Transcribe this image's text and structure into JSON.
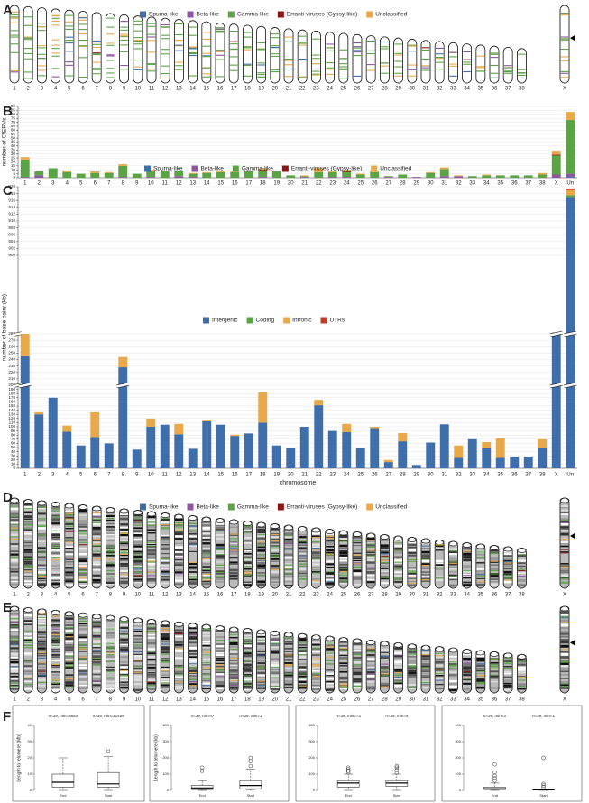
{
  "chart_data": [
    {
      "type": "ideogram",
      "panel": "A",
      "series": [
        {
          "name": "Spuma-like",
          "color": "#3f6faa"
        },
        {
          "name": "Beta-like",
          "color": "#8e55a0"
        },
        {
          "name": "Gamma-like",
          "color": "#5aa445"
        },
        {
          "name": "Erranti-viruses (Gypsy-like)",
          "color": "#8b1414"
        },
        {
          "name": "Unclassified",
          "color": "#e9a94a"
        }
      ],
      "categories": [
        "1",
        "2",
        "3",
        "4",
        "5",
        "6",
        "7",
        "8",
        "9",
        "10",
        "11",
        "12",
        "13",
        "14",
        "15",
        "16",
        "17",
        "18",
        "19",
        "20",
        "21",
        "22",
        "23",
        "24",
        "25",
        "26",
        "27",
        "28",
        "29",
        "30",
        "31",
        "32",
        "33",
        "34",
        "35",
        "36",
        "37",
        "38",
        "X"
      ],
      "banded": false
    },
    {
      "type": "bar",
      "panel": "B",
      "stacked": true,
      "ylabel": "number of CfERVs",
      "grid": true,
      "categories": [
        "1",
        "2",
        "3",
        "4",
        "5",
        "6",
        "7",
        "8",
        "9",
        "10",
        "11",
        "12",
        "13",
        "14",
        "15",
        "16",
        "17",
        "18",
        "19",
        "20",
        "21",
        "22",
        "23",
        "24",
        "25",
        "26",
        "27",
        "28",
        "29",
        "30",
        "31",
        "32",
        "33",
        "34",
        "35",
        "36",
        "37",
        "38",
        "X",
        "Un"
      ],
      "series": [
        {
          "name": "Spuma-like",
          "color": "#3f6faa",
          "values": [
            0,
            0,
            0,
            0,
            0,
            0,
            0,
            0,
            0,
            0,
            0,
            0,
            0,
            0,
            0,
            0,
            0,
            0,
            0,
            0,
            0,
            0,
            0,
            0,
            0,
            0,
            0,
            0,
            0,
            0,
            0,
            0,
            0,
            0,
            0,
            0,
            0,
            0,
            0,
            1
          ]
        },
        {
          "name": "Beta-like",
          "color": "#8e55a0",
          "values": [
            1,
            3,
            0,
            0,
            0,
            0,
            0,
            1,
            0,
            1,
            0,
            2,
            1,
            0,
            0,
            0,
            0,
            1,
            0,
            0,
            1,
            0,
            1,
            1,
            0,
            0,
            1,
            0,
            1,
            0,
            2,
            2,
            0,
            0,
            0,
            0,
            0,
            0,
            4,
            4
          ]
        },
        {
          "name": "Gamma-like",
          "color": "#5aa445",
          "values": [
            22,
            5,
            12,
            7,
            5,
            6,
            6,
            14,
            5,
            7,
            8,
            6,
            4,
            6,
            7,
            7,
            8,
            8,
            8,
            3,
            1,
            7,
            6,
            6,
            4,
            7,
            1,
            4,
            0,
            6,
            9,
            0,
            2,
            3,
            3,
            3,
            3,
            4,
            24,
            68
          ]
        },
        {
          "name": "Erranti-viruses (Gypsy-like)",
          "color": "#8b1414",
          "values": [
            0,
            0,
            0,
            0,
            0,
            0,
            0,
            0,
            0,
            0,
            0,
            0,
            0,
            0,
            0,
            0,
            0,
            1,
            0,
            0,
            0,
            0,
            0,
            1,
            0,
            0,
            0,
            0,
            0,
            0,
            0,
            0,
            0,
            0,
            0,
            0,
            0,
            0,
            1,
            0
          ]
        },
        {
          "name": "Unclassified",
          "color": "#e9a94a",
          "values": [
            3,
            0,
            0,
            2,
            0,
            2,
            1,
            2,
            0,
            2,
            1,
            1,
            1,
            1,
            1,
            1,
            0,
            2,
            0,
            0,
            1,
            5,
            1,
            2,
            1,
            2,
            0,
            0,
            0,
            1,
            2,
            1,
            0,
            1,
            0,
            0,
            0,
            2,
            5,
            10
          ]
        }
      ],
      "ylim": [
        0,
        90
      ],
      "yticks": [
        0,
        5,
        10,
        15,
        20,
        25,
        30,
        35,
        40,
        45,
        50,
        55,
        60,
        65,
        70,
        75,
        80,
        85,
        90
      ]
    },
    {
      "type": "bar",
      "panel": "C",
      "stacked": true,
      "ylabel": "number of base pairs (kb)",
      "xlabel": "chromosome",
      "grid": true,
      "categories": [
        "1",
        "2",
        "3",
        "4",
        "5",
        "6",
        "7",
        "8",
        "9",
        "10",
        "11",
        "12",
        "13",
        "14",
        "15",
        "16",
        "17",
        "18",
        "19",
        "20",
        "21",
        "22",
        "23",
        "24",
        "25",
        "26",
        "27",
        "28",
        "29",
        "30",
        "31",
        "32",
        "33",
        "34",
        "35",
        "36",
        "37",
        "38",
        "X",
        "Un"
      ],
      "series": [
        {
          "name": "Intergenic",
          "color": "#3f6faa",
          "values": [
            245,
            130,
            170,
            88,
            55,
            75,
            60,
            228,
            45,
            100,
            105,
            82,
            47,
            113,
            105,
            78,
            84,
            110,
            55,
            50,
            100,
            152,
            90,
            87,
            50,
            97,
            15,
            65,
            8,
            62,
            106,
            25,
            70,
            48,
            25,
            27,
            28,
            50,
            290,
            917
          ]
        },
        {
          "name": "Coding",
          "color": "#5aa445",
          "values": [
            0,
            0,
            0,
            0,
            0,
            0,
            0,
            0,
            0,
            0,
            0,
            0,
            0,
            0,
            0,
            0,
            0,
            0,
            0,
            0,
            0,
            0,
            0,
            0,
            0,
            0,
            0,
            0,
            0,
            0,
            0,
            0,
            0,
            0,
            0,
            0,
            0,
            0,
            0,
            0.5
          ]
        },
        {
          "name": "Intronic",
          "color": "#e9a94a",
          "values": [
            35,
            5,
            0,
            15,
            0,
            60,
            0,
            16,
            0,
            20,
            0,
            25,
            0,
            2,
            0,
            3,
            0,
            73,
            0,
            0,
            0,
            13,
            0,
            20,
            0,
            3,
            5,
            20,
            0,
            0,
            0,
            30,
            0,
            15,
            47,
            0,
            0,
            20,
            0,
            1.5
          ]
        },
        {
          "name": "UTRs",
          "color": "#c0392b",
          "values": [
            0,
            0,
            0,
            0,
            0,
            0,
            0,
            0,
            0,
            0,
            0,
            0,
            0,
            0,
            0,
            0,
            0,
            0,
            0,
            0,
            0,
            0,
            0,
            0,
            0,
            0,
            0,
            0,
            0,
            0,
            0,
            0,
            0,
            0,
            0,
            0,
            0,
            0,
            0,
            0.5
          ]
        }
      ],
      "ylim": [
        0,
        920
      ],
      "ybreaks": [
        [
          200,
          200
        ],
        [
          280,
          900
        ]
      ],
      "yticks": [
        0,
        10,
        20,
        30,
        40,
        50,
        60,
        70,
        80,
        90,
        100,
        110,
        120,
        130,
        140,
        150,
        160,
        170,
        180,
        190,
        200,
        210,
        220,
        230,
        240,
        250,
        260,
        270,
        280,
        900,
        902,
        904,
        906,
        908,
        910,
        912,
        914,
        916,
        918,
        920
      ]
    },
    {
      "type": "ideogram",
      "panel": "D",
      "series": [
        {
          "name": "Spuma-like",
          "color": "#3f6faa"
        },
        {
          "name": "Beta-like",
          "color": "#8e55a0"
        },
        {
          "name": "Gamma-like",
          "color": "#5aa445"
        },
        {
          "name": "Erranti-viruses (Gypsy-like)",
          "color": "#8b1414"
        },
        {
          "name": "Unclassified",
          "color": "#e9a94a"
        }
      ],
      "categories": [
        "1",
        "2",
        "3",
        "4",
        "5",
        "6",
        "7",
        "8",
        "9",
        "10",
        "11",
        "12",
        "13",
        "14",
        "15",
        "16",
        "17",
        "18",
        "19",
        "20",
        "21",
        "22",
        "23",
        "24",
        "25",
        "26",
        "27",
        "28",
        "29",
        "30",
        "31",
        "32",
        "33",
        "34",
        "35",
        "36",
        "37",
        "38",
        "X"
      ],
      "banded": true
    },
    {
      "type": "ideogram",
      "panel": "E",
      "band_colors": [
        "#3f6faa",
        "#8e55a0",
        "#5aa445",
        "#8b1414",
        "#e9a94a"
      ],
      "categories": [
        "1",
        "2",
        "3",
        "4",
        "5",
        "6",
        "7",
        "8",
        "9",
        "10",
        "11",
        "12",
        "13",
        "14",
        "15",
        "16",
        "17",
        "18",
        "19",
        "20",
        "21",
        "22",
        "23",
        "24",
        "25",
        "26",
        "27",
        "28",
        "29",
        "30",
        "31",
        "32",
        "33",
        "34",
        "35",
        "36",
        "37",
        "38",
        "X"
      ],
      "banded": true
    },
    {
      "type": "box",
      "panel": "F",
      "plots": [
        {
          "ylabel": "Length to telomere (Mb)",
          "ylim": [
            0,
            40
          ],
          "yticks": [
            0,
            10,
            20,
            30,
            40
          ],
          "categories": [
            "End",
            "Start"
          ],
          "annotations": [
            "n=39; min=6854",
            "n=39; min=21459"
          ],
          "boxes": [
            {
              "min": 0,
              "q1": 2,
              "median": 5,
              "q3": 10,
              "max": 20,
              "outliers": []
            },
            {
              "min": 0,
              "q1": 2,
              "median": 4,
              "q3": 11,
              "max": 21,
              "outliers": [
                24
              ]
            }
          ]
        },
        {
          "ylabel": "Length to telomere (kb)",
          "ylim": [
            0,
            400
          ],
          "yticks": [
            0,
            100,
            200,
            300,
            400
          ],
          "categories": [
            "End",
            "Start"
          ],
          "annotations": [
            "n=39; min=0",
            "n=39; min=1"
          ],
          "boxes": [
            {
              "min": 0,
              "q1": 5,
              "median": 15,
              "q3": 30,
              "max": 60,
              "outliers": [
                120,
                140
              ]
            },
            {
              "min": 1,
              "q1": 10,
              "median": 30,
              "q3": 60,
              "max": 130,
              "outliers": [
                150,
                180,
                200
              ]
            }
          ]
        },
        {
          "ylim": [
            0,
            400
          ],
          "yticks": [
            0,
            100,
            200,
            300,
            400
          ],
          "categories": [
            "End",
            "Start"
          ],
          "annotations": [
            "n=39; min=73",
            "n=39; min=4"
          ],
          "boxes": [
            {
              "min": 0,
              "q1": 20,
              "median": 45,
              "q3": 60,
              "max": 100,
              "outliers": [
                110,
                120,
                130,
                140
              ]
            },
            {
              "min": 0,
              "q1": 25,
              "median": 45,
              "q3": 60,
              "max": 100,
              "outliers": [
                110,
                125,
                140,
                150
              ]
            }
          ]
        },
        {
          "ylim": [
            0,
            400
          ],
          "yticks": [
            0,
            100,
            200,
            300,
            400
          ],
          "categories": [
            "End",
            "Start"
          ],
          "annotations": [
            "n=39; min=3",
            "n=39; min=1"
          ],
          "boxes": [
            {
              "min": 0,
              "q1": 5,
              "median": 10,
              "q3": 20,
              "max": 45,
              "outliers": [
                60,
                75,
                90,
                110,
                160
              ]
            },
            {
              "min": 0,
              "q1": 2,
              "median": 3,
              "q3": 5,
              "max": 8,
              "outliers": [
                20,
                30,
                40,
                200
              ]
            }
          ]
        }
      ]
    }
  ]
}
